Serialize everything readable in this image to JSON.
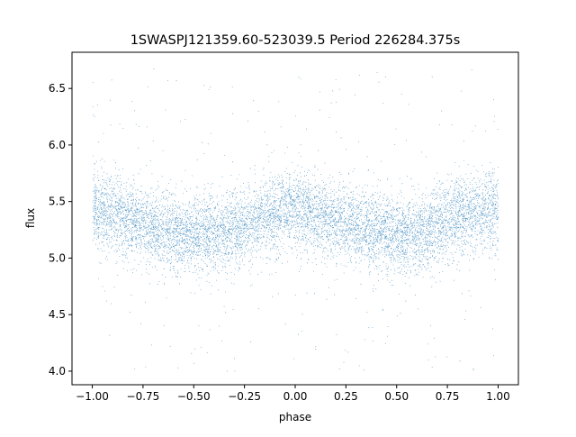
{
  "chart_data": {
    "type": "scatter",
    "title": "1SWASPJ121359.60-523039.5 Period 226284.375s",
    "xlabel": "phase",
    "ylabel": "flux",
    "xlim": [
      -1.1,
      1.1
    ],
    "ylim": [
      3.88,
      6.82
    ],
    "x_ticks": [
      "−1.00",
      "−0.75",
      "−0.50",
      "−0.25",
      "0.00",
      "0.25",
      "0.50",
      "0.75",
      "1.00"
    ],
    "y_ticks": [
      "4.0",
      "4.5",
      "5.0",
      "5.5",
      "6.0",
      "6.5"
    ],
    "grid": false,
    "legend": "none",
    "marker_color": "#1f77b4",
    "marker_size": "tiny",
    "phase_range": [
      -1.0,
      1.0
    ],
    "flux_range": [
      4.0,
      6.7
    ],
    "point_count_approx": 30000,
    "trend": {
      "description": "folded light curve, two cycles: flux maxima near phase -1.0, 0.0, 1.0 and minima near phase -0.45 and 0.55",
      "x": [
        -1.0,
        -0.75,
        -0.5,
        -0.4,
        -0.25,
        0.0,
        0.25,
        0.5,
        0.6,
        0.75,
        1.0
      ],
      "y": [
        5.45,
        5.3,
        5.2,
        5.2,
        5.3,
        5.45,
        5.3,
        5.2,
        5.2,
        5.35,
        5.45
      ]
    }
  }
}
